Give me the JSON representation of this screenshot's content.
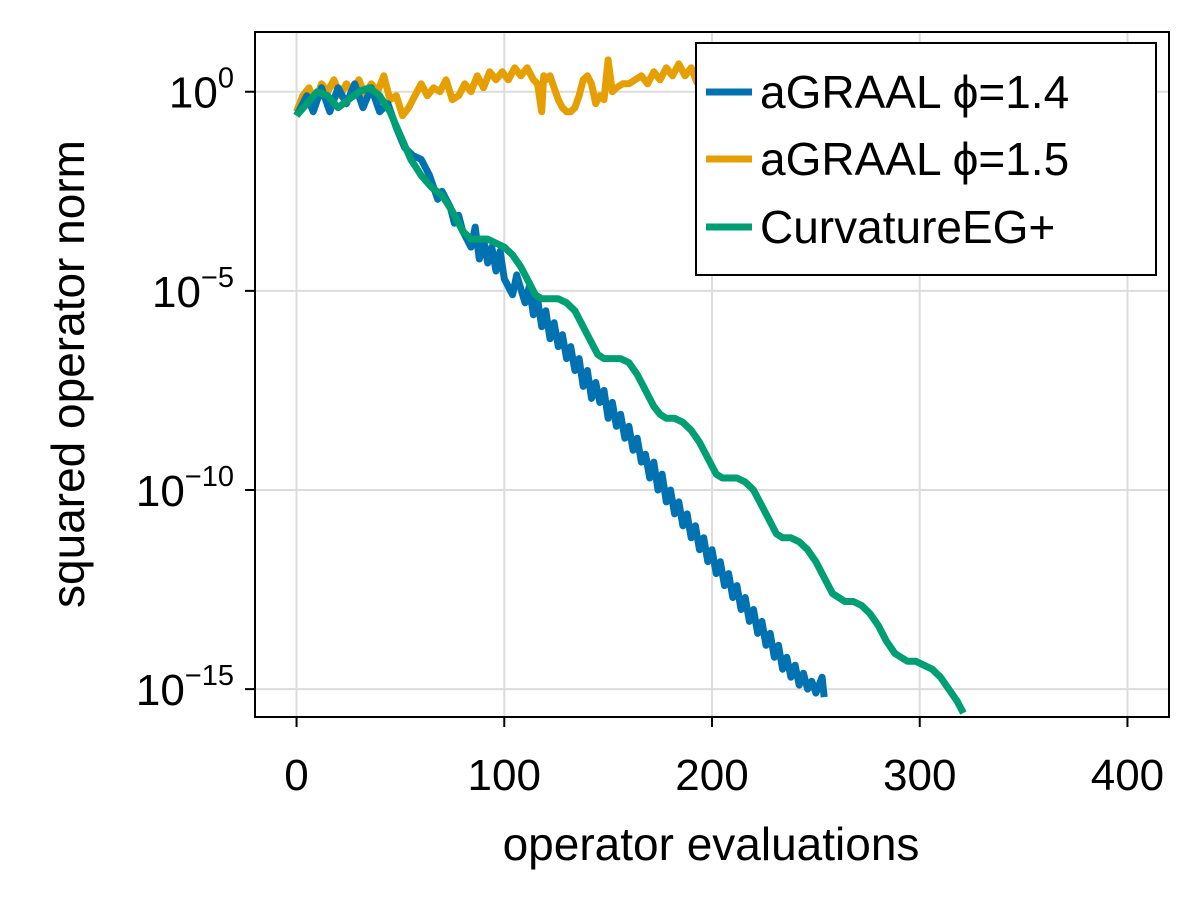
{
  "chart_data": {
    "type": "line",
    "title": "",
    "xlabel": "operator evaluations",
    "ylabel": "squared operator norm",
    "xlim": [
      -20,
      420
    ],
    "ylim_log10": [
      -15.7,
      1.5
    ],
    "yscale": "log",
    "x_ticks": [
      0,
      100,
      200,
      300,
      400
    ],
    "y_ticks": [
      {
        "base": "10",
        "exp": "0",
        "log10": 0
      },
      {
        "base": "10",
        "exp": "−5",
        "log10": -5
      },
      {
        "base": "10",
        "exp": "−10",
        "log10": -10
      },
      {
        "base": "10",
        "exp": "−15",
        "log10": -15
      }
    ],
    "grid": true,
    "legend_position": "top-right",
    "series": [
      {
        "name": "aGRAAL ϕ=1.4",
        "color": "#0072b2",
        "points": [
          [
            0,
            -0.6
          ],
          [
            5,
            -0.1
          ],
          [
            8,
            -0.5
          ],
          [
            12,
            0.1
          ],
          [
            16,
            -0.5
          ],
          [
            20,
            0.1
          ],
          [
            24,
            -0.3
          ],
          [
            28,
            0.2
          ],
          [
            32,
            -0.4
          ],
          [
            36,
            0.1
          ],
          [
            40,
            -0.5
          ],
          [
            44,
            -0.3
          ],
          [
            48,
            -0.9
          ],
          [
            52,
            -1.4
          ],
          [
            56,
            -1.6
          ],
          [
            60,
            -1.7
          ],
          [
            64,
            -2.1
          ],
          [
            66,
            -2.4
          ],
          [
            68,
            -2.7
          ],
          [
            70,
            -2.5
          ],
          [
            74,
            -2.9
          ],
          [
            76,
            -3.3
          ],
          [
            78,
            -3.1
          ],
          [
            80,
            -3.5
          ],
          [
            84,
            -3.9
          ],
          [
            86,
            -3.4
          ],
          [
            88,
            -4.2
          ],
          [
            90,
            -3.7
          ],
          [
            92,
            -4.3
          ],
          [
            94,
            -3.9
          ],
          [
            96,
            -4.5
          ],
          [
            98,
            -4.0
          ],
          [
            100,
            -4.7
          ],
          [
            104,
            -5.1
          ],
          [
            106,
            -4.6
          ],
          [
            110,
            -5.3
          ],
          [
            112,
            -4.9
          ],
          [
            114,
            -5.6
          ],
          [
            116,
            -5.2
          ],
          [
            118,
            -5.9
          ],
          [
            120,
            -5.5
          ],
          [
            122,
            -6.2
          ],
          [
            124,
            -5.8
          ],
          [
            126,
            -6.4
          ],
          [
            128,
            -6.1
          ],
          [
            130,
            -6.7
          ],
          [
            132,
            -6.4
          ],
          [
            134,
            -7.0
          ],
          [
            136,
            -6.7
          ],
          [
            138,
            -7.4
          ],
          [
            140,
            -7.0
          ],
          [
            142,
            -7.7
          ],
          [
            144,
            -7.3
          ],
          [
            146,
            -7.8
          ],
          [
            148,
            -7.5
          ],
          [
            150,
            -8.2
          ],
          [
            152,
            -7.8
          ],
          [
            154,
            -8.4
          ],
          [
            156,
            -8.1
          ],
          [
            158,
            -8.7
          ],
          [
            160,
            -8.4
          ],
          [
            162,
            -9.0
          ],
          [
            164,
            -8.7
          ],
          [
            166,
            -9.3
          ],
          [
            168,
            -9.1
          ],
          [
            170,
            -9.7
          ],
          [
            172,
            -9.3
          ],
          [
            174,
            -10.0
          ],
          [
            176,
            -9.6
          ],
          [
            178,
            -10.3
          ],
          [
            180,
            -10.0
          ],
          [
            182,
            -10.6
          ],
          [
            184,
            -10.3
          ],
          [
            186,
            -10.9
          ],
          [
            188,
            -10.6
          ],
          [
            190,
            -11.2
          ],
          [
            192,
            -10.9
          ],
          [
            194,
            -11.5
          ],
          [
            196,
            -11.2
          ],
          [
            198,
            -11.8
          ],
          [
            200,
            -11.5
          ],
          [
            202,
            -12.1
          ],
          [
            204,
            -11.8
          ],
          [
            206,
            -12.4
          ],
          [
            208,
            -12.1
          ],
          [
            210,
            -12.7
          ],
          [
            212,
            -12.4
          ],
          [
            214,
            -13.0
          ],
          [
            216,
            -12.7
          ],
          [
            218,
            -13.3
          ],
          [
            220,
            -13.0
          ],
          [
            222,
            -13.6
          ],
          [
            224,
            -13.3
          ],
          [
            226,
            -13.9
          ],
          [
            228,
            -13.6
          ],
          [
            230,
            -14.2
          ],
          [
            232,
            -13.9
          ],
          [
            234,
            -14.5
          ],
          [
            236,
            -14.2
          ],
          [
            238,
            -14.7
          ],
          [
            240,
            -14.4
          ],
          [
            242,
            -14.9
          ],
          [
            244,
            -14.6
          ],
          [
            246,
            -15.0
          ],
          [
            248,
            -14.8
          ],
          [
            250,
            -15.1
          ],
          [
            253,
            -14.7
          ],
          [
            254,
            -15.2
          ]
        ]
      },
      {
        "name": "aGRAAL ϕ=1.5",
        "color": "#e69f00",
        "points": [
          [
            0,
            -0.5
          ],
          [
            3,
            -0.1
          ],
          [
            6,
            0.1
          ],
          [
            9,
            -0.3
          ],
          [
            12,
            0.2
          ],
          [
            15,
            0.0
          ],
          [
            18,
            0.3
          ],
          [
            21,
            -0.1
          ],
          [
            24,
            0.2
          ],
          [
            27,
            0.0
          ],
          [
            30,
            0.3
          ],
          [
            33,
            -0.1
          ],
          [
            36,
            0.2
          ],
          [
            39,
            0.0
          ],
          [
            42,
            0.4
          ],
          [
            45,
            -0.2
          ],
          [
            48,
            -0.1
          ],
          [
            51,
            -0.6
          ],
          [
            54,
            -0.4
          ],
          [
            57,
            -0.1
          ],
          [
            60,
            0.2
          ],
          [
            63,
            -0.1
          ],
          [
            66,
            0.1
          ],
          [
            69,
            0.0
          ],
          [
            72,
            0.3
          ],
          [
            75,
            -0.2
          ],
          [
            78,
            -0.1
          ],
          [
            81,
            0.2
          ],
          [
            84,
            0.0
          ],
          [
            87,
            0.4
          ],
          [
            90,
            0.1
          ],
          [
            93,
            0.5
          ],
          [
            96,
            0.3
          ],
          [
            99,
            0.5
          ],
          [
            102,
            0.3
          ],
          [
            105,
            0.6
          ],
          [
            108,
            0.4
          ],
          [
            111,
            0.6
          ],
          [
            114,
            0.3
          ],
          [
            116,
            0.2
          ],
          [
            118,
            -0.5
          ],
          [
            119,
            0.4
          ],
          [
            120,
            0.3
          ],
          [
            122,
            0.4
          ],
          [
            124,
            0.1
          ],
          [
            126,
            -0.2
          ],
          [
            128,
            -0.4
          ],
          [
            130,
            -0.5
          ],
          [
            132,
            -0.5
          ],
          [
            134,
            -0.4
          ],
          [
            136,
            -0.1
          ],
          [
            138,
            0.3
          ],
          [
            140,
            0.4
          ],
          [
            142,
            0.2
          ],
          [
            144,
            -0.3
          ],
          [
            146,
            -0.1
          ],
          [
            148,
            -0.2
          ],
          [
            150,
            0.8
          ],
          [
            152,
            0.0
          ],
          [
            154,
            0.1
          ],
          [
            157,
            0.2
          ],
          [
            160,
            0.2
          ],
          [
            163,
            0.3
          ],
          [
            166,
            0.4
          ],
          [
            169,
            0.2
          ],
          [
            172,
            0.5
          ],
          [
            175,
            0.3
          ],
          [
            178,
            0.6
          ],
          [
            181,
            0.4
          ],
          [
            184,
            0.7
          ],
          [
            187,
            0.4
          ],
          [
            190,
            0.6
          ],
          [
            193,
            0.2
          ]
        ]
      },
      {
        "name": "CurvatureEG+",
        "color": "#009e73",
        "points": [
          [
            0,
            -0.6
          ],
          [
            5,
            -0.3
          ],
          [
            10,
            0.0
          ],
          [
            15,
            -0.1
          ],
          [
            20,
            -0.4
          ],
          [
            25,
            -0.2
          ],
          [
            30,
            0.0
          ],
          [
            35,
            0.1
          ],
          [
            40,
            -0.1
          ],
          [
            45,
            -0.5
          ],
          [
            50,
            -1.1
          ],
          [
            55,
            -1.7
          ],
          [
            60,
            -2.1
          ],
          [
            65,
            -2.4
          ],
          [
            70,
            -2.6
          ],
          [
            75,
            -3.0
          ],
          [
            80,
            -3.5
          ],
          [
            84,
            -3.7
          ],
          [
            88,
            -3.7
          ],
          [
            92,
            -3.7
          ],
          [
            96,
            -3.8
          ],
          [
            100,
            -3.9
          ],
          [
            104,
            -4.1
          ],
          [
            108,
            -4.4
          ],
          [
            112,
            -4.8
          ],
          [
            115,
            -5.1
          ],
          [
            118,
            -5.2
          ],
          [
            122,
            -5.2
          ],
          [
            126,
            -5.2
          ],
          [
            130,
            -5.3
          ],
          [
            134,
            -5.5
          ],
          [
            138,
            -5.9
          ],
          [
            142,
            -6.3
          ],
          [
            145,
            -6.6
          ],
          [
            148,
            -6.7
          ],
          [
            152,
            -6.7
          ],
          [
            156,
            -6.7
          ],
          [
            160,
            -6.8
          ],
          [
            164,
            -7.1
          ],
          [
            168,
            -7.5
          ],
          [
            172,
            -7.9
          ],
          [
            175,
            -8.1
          ],
          [
            178,
            -8.2
          ],
          [
            182,
            -8.2
          ],
          [
            186,
            -8.3
          ],
          [
            190,
            -8.5
          ],
          [
            194,
            -8.8
          ],
          [
            198,
            -9.2
          ],
          [
            202,
            -9.6
          ],
          [
            205,
            -9.7
          ],
          [
            208,
            -9.7
          ],
          [
            212,
            -9.7
          ],
          [
            216,
            -9.8
          ],
          [
            220,
            -10.0
          ],
          [
            224,
            -10.4
          ],
          [
            228,
            -10.8
          ],
          [
            231,
            -11.1
          ],
          [
            234,
            -11.2
          ],
          [
            238,
            -11.2
          ],
          [
            242,
            -11.3
          ],
          [
            246,
            -11.5
          ],
          [
            250,
            -11.8
          ],
          [
            254,
            -12.2
          ],
          [
            258,
            -12.6
          ],
          [
            261,
            -12.7
          ],
          [
            264,
            -12.8
          ],
          [
            268,
            -12.8
          ],
          [
            272,
            -12.9
          ],
          [
            276,
            -13.1
          ],
          [
            280,
            -13.4
          ],
          [
            284,
            -13.8
          ],
          [
            288,
            -14.1
          ],
          [
            291,
            -14.2
          ],
          [
            294,
            -14.3
          ],
          [
            298,
            -14.3
          ],
          [
            302,
            -14.4
          ],
          [
            306,
            -14.5
          ],
          [
            310,
            -14.7
          ],
          [
            314,
            -15.0
          ],
          [
            318,
            -15.3
          ],
          [
            321,
            -15.6
          ]
        ]
      }
    ]
  }
}
